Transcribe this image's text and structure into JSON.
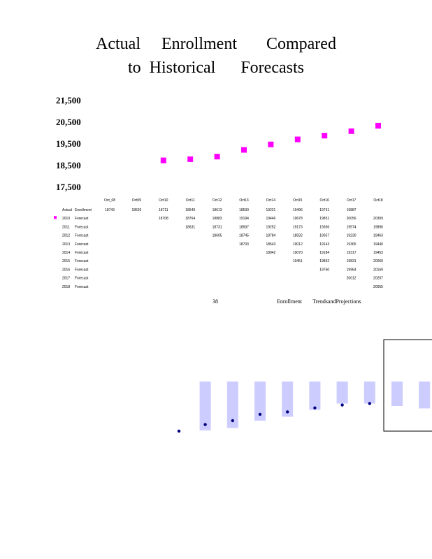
{
  "page": {
    "title_line1": "Actual     Enrollment       Compared",
    "title_line2": "to  Historical      Forecasts",
    "page_number": "38",
    "footer_label1": "Enrollment",
    "footer_label2": "TrendsandProjections"
  },
  "colors": {
    "marker": "#ff00ff",
    "bar_fill": "#ccccff",
    "dot": "#000080"
  },
  "chart_data": [
    {
      "type": "scatter",
      "title": "Actual     Enrollment       Compared to  Historical      Forecasts",
      "y_ticks": [
        "21,500",
        "20,500",
        "19,500",
        "18,500",
        "17,500"
      ],
      "ylim": [
        17500,
        21500
      ],
      "categories": [
        "Oct_08",
        "Oct09",
        "Oct10",
        "Oct11",
        "Oct12",
        "Oct13",
        "Oct14",
        "Oct15",
        "Oct16",
        "Oct17",
        "Oct18"
      ],
      "series": [
        {
          "name": "2010 Forecast",
          "points": [
            {
              "x": "Oct10",
              "y": 18708
            },
            {
              "x": "Oct11",
              "y": 18764
            },
            {
              "x": "Oct12",
              "y": 18883
            },
            {
              "x": "Oct13",
              "y": 19194
            },
            {
              "x": "Oct14",
              "y": 19446
            },
            {
              "x": "Oct15",
              "y": 19678
            },
            {
              "x": "Oct16",
              "y": 19851
            },
            {
              "x": "Oct17",
              "y": 20056
            },
            {
              "x": "Oct18",
              "y": 20309
            }
          ]
        }
      ],
      "table": {
        "rows": [
          {
            "label": "Actual",
            "label2": "Enrollment",
            "marker": false,
            "values": [
              "18743",
              "18526",
              "18711",
              "18649",
              "18613",
              "18530",
              "19221",
              "19496",
              "19731",
              "19887",
              ""
            ]
          },
          {
            "label": "2010",
            "label2": "Forecast",
            "marker": true,
            "values": [
              "",
              "",
              "18708",
              "18764",
              "18883",
              "19194",
              "19446",
              "19678",
              "19851",
              "20056",
              "20309"
            ]
          },
          {
            "label": "2011",
            "label2": "Forecast",
            "marker": false,
            "values": [
              "",
              "",
              "",
              "18631",
              "18731",
              "18937",
              "19252",
              "19173",
              "19356",
              "19574",
              "19890"
            ]
          },
          {
            "label": "2012",
            "label2": "Forecast",
            "marker": false,
            "values": [
              "",
              "",
              "",
              "",
              "18605",
              "18745",
              "18784",
              "18592",
              "19057",
              "19230",
              "19463"
            ]
          },
          {
            "label": "2013",
            "label2": "Forecast",
            "marker": false,
            "values": [
              "",
              "",
              "",
              "",
              "",
              "18733",
              "18543",
              "19012",
              "19143",
              "19365",
              "19440"
            ]
          },
          {
            "label": "2014",
            "label2": "Forecast",
            "marker": false,
            "values": [
              "",
              "",
              "",
              "",
              "",
              "",
              "18942",
              "19070",
              "19184",
              "19317",
              "19453"
            ]
          },
          {
            "label": "2015",
            "label2": "Forecast",
            "marker": false,
            "values": [
              "",
              "",
              "",
              "",
              "",
              "",
              "",
              "19451",
              "19852",
              "19831",
              "20060"
            ]
          },
          {
            "label": "2016",
            "label2": "Forecast",
            "marker": false,
            "values": [
              "",
              "",
              "",
              "",
              "",
              "",
              "",
              "",
              "19760",
              "19964",
              "20169"
            ]
          },
          {
            "label": "2017",
            "label2": "Forecast",
            "marker": false,
            "values": [
              "",
              "",
              "",
              "",
              "",
              "",
              "",
              "",
              "",
              "20012",
              "20207"
            ]
          },
          {
            "label": "2018",
            "label2": "Forecast",
            "marker": false,
            "values": [
              "",
              "",
              "",
              "",
              "",
              "",
              "",
              "",
              "",
              "",
              "20055"
            ]
          }
        ]
      }
    },
    {
      "type": "bar",
      "columns": [
        {
          "bar": false,
          "dot": 0.0
        },
        {
          "bar": false,
          "dot": 0.0
        },
        {
          "bar": false,
          "dot": 0.0
        },
        {
          "bar": true,
          "top": 1.0,
          "bottom": 0.0,
          "dot": 0.12
        },
        {
          "bar": true,
          "top": 1.0,
          "bottom": 0.05,
          "dot": 0.2
        },
        {
          "bar": true,
          "top": 1.0,
          "bottom": 0.2,
          "dot": 0.33
        },
        {
          "bar": true,
          "top": 1.0,
          "bottom": 0.28,
          "dot": 0.38
        },
        {
          "bar": true,
          "top": 1.0,
          "bottom": 0.42,
          "dot": 0.46
        },
        {
          "bar": true,
          "top": 1.0,
          "bottom": 0.55,
          "dot": 0.52
        },
        {
          "bar": true,
          "top": 1.0,
          "bottom": 0.55,
          "dot": 0.55
        },
        {
          "bar": true,
          "top": 1.0,
          "bottom": 0.5,
          "dot": null
        },
        {
          "bar": true,
          "top": 1.0,
          "bottom": 0.45,
          "dot": null
        }
      ]
    }
  ]
}
